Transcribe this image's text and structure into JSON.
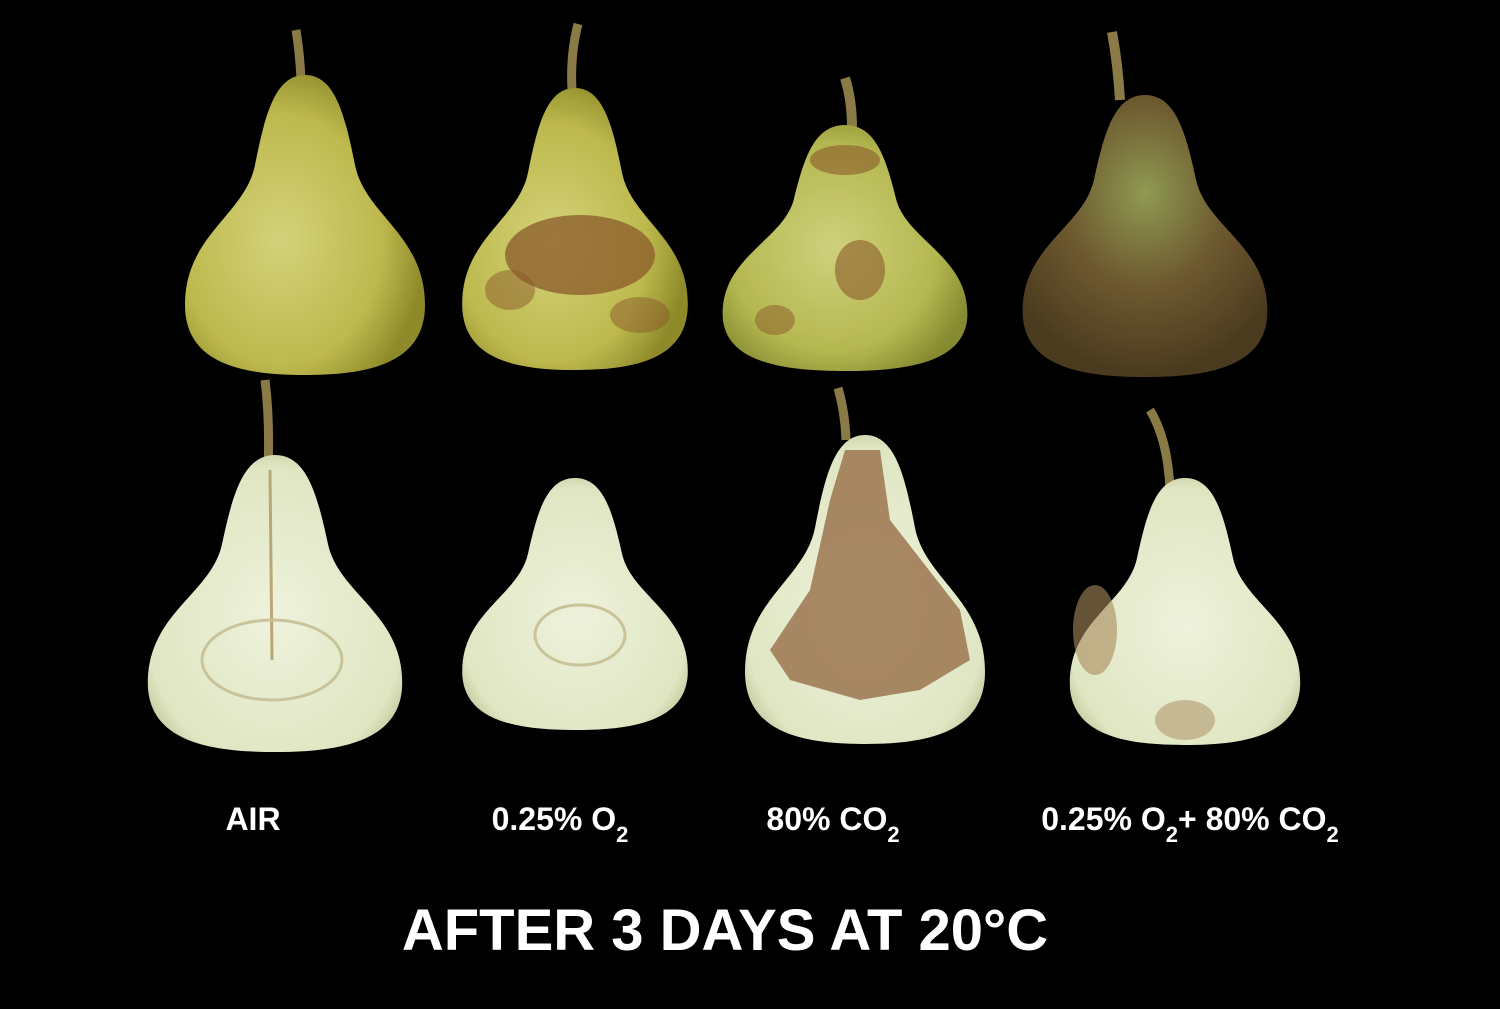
{
  "labels": [
    [
      {
        "text": "AIR",
        "sub": false
      }
    ],
    [
      {
        "text": "0.25% O",
        "sub": false
      },
      {
        "text": "2",
        "sub": true
      }
    ],
    [
      {
        "text": "80% CO",
        "sub": false
      },
      {
        "text": "2",
        "sub": true
      }
    ],
    [
      {
        "text": "0.25% O",
        "sub": false
      },
      {
        "text": "2",
        "sub": true
      },
      {
        "text": "+ 80% CO",
        "sub": false
      },
      {
        "text": "2",
        "sub": true
      }
    ]
  ],
  "title": "AFTER 3 DAYS AT 20°C"
}
